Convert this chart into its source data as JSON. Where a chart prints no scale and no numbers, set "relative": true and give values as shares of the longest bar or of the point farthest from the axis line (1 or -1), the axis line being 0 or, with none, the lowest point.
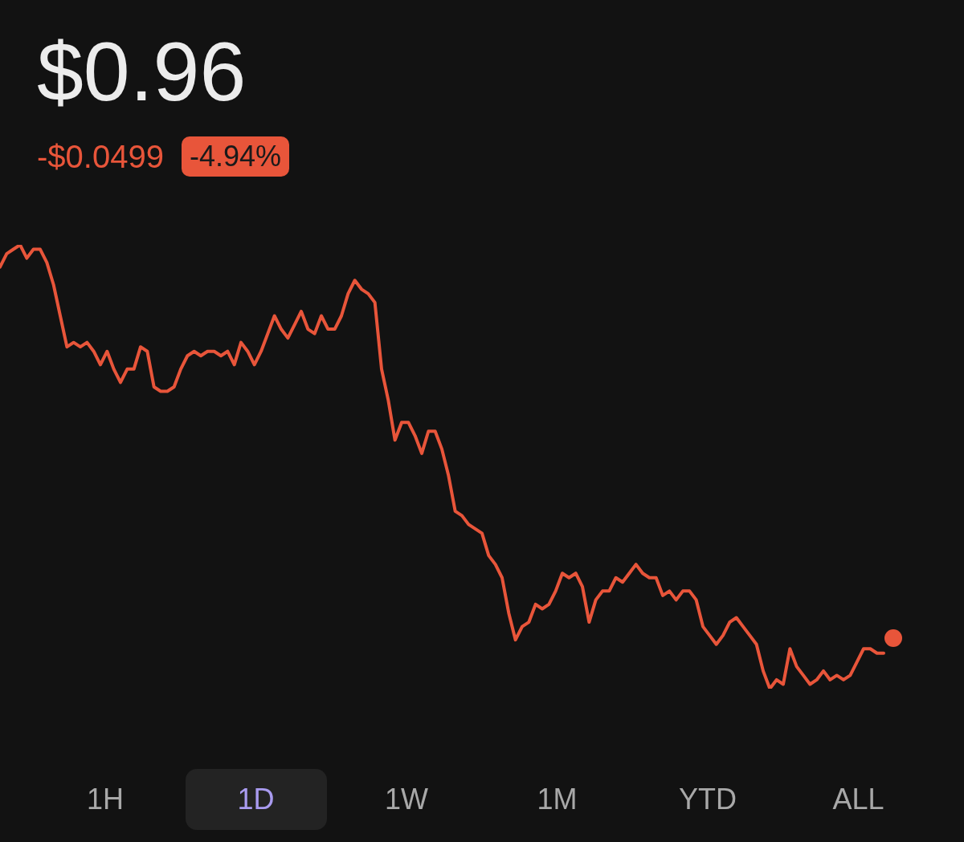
{
  "chart_data": {
    "type": "line",
    "title": "$0.96",
    "subtitle": "-$0.0499",
    "relative": true,
    "legend": false,
    "grid": false,
    "marker": "none",
    "annotations": [
      "-4.94%",
      "1H",
      "1D",
      "1W",
      "1M",
      "YTD",
      "ALL"
    ],
    "categories": [
      null,
      null,
      null,
      null,
      null,
      null,
      null,
      null,
      null,
      null,
      null,
      null,
      null,
      null,
      null,
      null,
      null,
      null,
      null,
      null,
      null,
      null,
      null,
      null,
      null,
      null,
      null,
      null,
      null,
      null,
      null,
      null,
      null,
      null,
      null,
      null,
      null,
      null,
      null,
      null,
      null,
      null,
      null,
      null,
      null,
      null,
      null,
      null,
      null,
      null,
      null,
      null,
      null,
      null,
      null,
      null,
      null,
      null,
      null,
      null,
      null,
      null,
      null,
      null,
      null,
      null,
      null,
      null,
      null,
      null,
      null,
      null,
      null,
      null,
      null,
      null,
      null,
      null,
      null,
      null,
      null,
      null,
      null,
      null,
      null,
      null,
      null,
      null,
      null,
      null,
      null,
      null,
      null,
      null,
      null,
      null,
      null,
      null,
      null,
      null,
      null,
      null,
      null,
      null,
      null,
      null,
      null,
      null,
      null,
      null,
      null,
      null,
      null,
      null,
      null,
      null,
      null,
      null,
      null,
      null,
      null,
      null,
      null,
      null,
      null,
      null,
      null,
      null,
      null,
      null,
      null,
      null,
      null
    ],
    "series": [
      {
        "color": "#e8553a",
        "values": [
          0.95,
          0.98,
          0.99,
          1.0,
          0.97,
          0.99,
          0.99,
          0.96,
          0.91,
          0.84,
          0.77,
          0.78,
          0.77,
          0.78,
          0.76,
          0.73,
          0.76,
          0.72,
          0.69,
          0.72,
          0.72,
          0.77,
          0.76,
          0.68,
          0.67,
          0.67,
          0.68,
          0.72,
          0.75,
          0.76,
          0.75,
          0.76,
          0.76,
          0.75,
          0.76,
          0.73,
          0.78,
          0.76,
          0.73,
          0.76,
          0.8,
          0.84,
          0.81,
          0.79,
          0.82,
          0.85,
          0.81,
          0.8,
          0.84,
          0.81,
          0.81,
          0.84,
          0.89,
          0.92,
          0.9,
          0.89,
          0.87,
          0.72,
          0.65,
          0.56,
          0.6,
          0.6,
          0.57,
          0.53,
          0.58,
          0.58,
          0.54,
          0.48,
          0.4,
          0.39,
          0.37,
          0.36,
          0.35,
          0.3,
          0.28,
          0.25,
          0.17,
          0.11,
          0.14,
          0.15,
          0.19,
          0.18,
          0.19,
          0.22,
          0.26,
          0.25,
          0.26,
          0.23,
          0.15,
          0.2,
          0.22,
          0.22,
          0.25,
          0.24,
          0.26,
          0.28,
          0.26,
          0.25,
          0.25,
          0.21,
          0.22,
          0.2,
          0.22,
          0.22,
          0.2,
          0.14,
          0.12,
          0.1,
          0.12,
          0.15,
          0.16,
          0.14,
          0.12,
          0.1,
          0.04,
          0.0,
          0.02,
          0.01,
          0.09,
          0.05,
          0.03,
          0.01,
          0.02,
          0.04,
          0.02,
          0.03,
          0.02,
          0.03,
          0.06,
          0.09,
          0.09,
          0.08,
          0.08
        ]
      }
    ]
  }
}
